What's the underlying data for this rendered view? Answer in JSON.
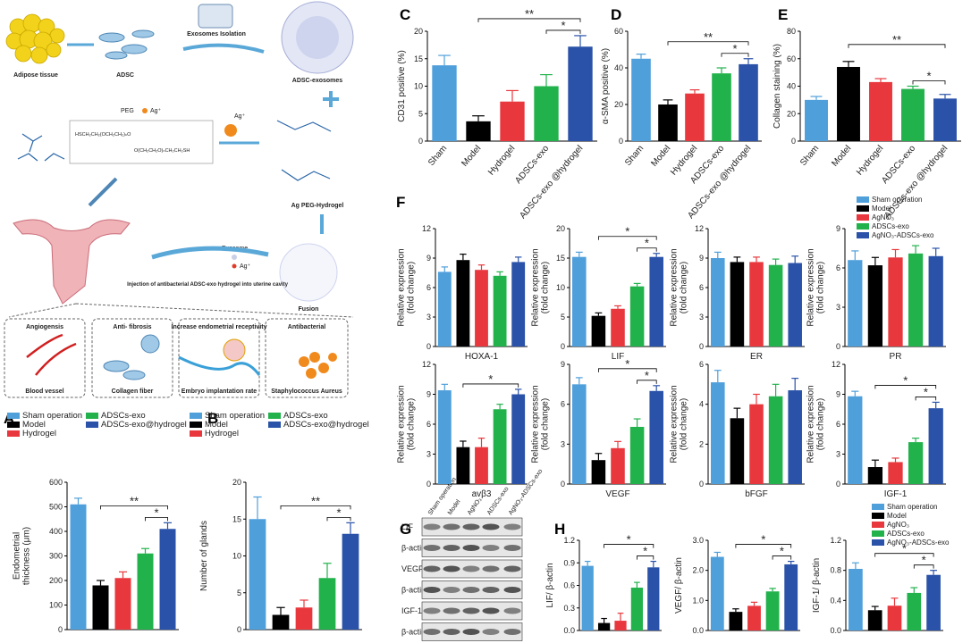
{
  "schematic": {
    "adipose": "Adipose tissue",
    "adsc": "ADSC",
    "isolation": "Exosomes Isolation",
    "exosomes": "ADSC-exosomes",
    "peg": "PEG",
    "ag1": "Ag⁺",
    "ag2": "Ag⁺",
    "chem1": "HSCH₂CH₂(OCH₂CH₂)ₙO",
    "chem2": "O(CH₂CH₂O)ₙCH₂CH₂SH",
    "hydrogel": "Ag PEG-Hydrogel",
    "exosome": "Exosome",
    "ag3": "Ag⁺",
    "fusion": "Fusion",
    "injection": "Injection of antibacterial ADSC-exo hydrogel into uterine cavity",
    "boxes": [
      {
        "title": "Angiogensis",
        "caption": "Blood vessel"
      },
      {
        "title": "Anti- fibrosis",
        "caption": "Collagen fiber"
      },
      {
        "title": "Increase endometrial receptivity",
        "caption": "Embryo implantation rate"
      },
      {
        "title": "Antibacterial",
        "caption": "Staphylococcus Aureus"
      }
    ]
  },
  "blot": {
    "label": "G",
    "lanes": [
      "Sham operation",
      "Model",
      "AgNO₃",
      "ADSCs-exo",
      "AgNO₃-ADSCs-exo"
    ],
    "rows": [
      "LIF",
      "β-actin",
      "VEGF",
      "β-actin",
      "IGF-1",
      "β-actin"
    ]
  },
  "chart_data": [
    {
      "type": "bar",
      "label": "A",
      "ylabel": [
        "Endometrial",
        "thickness (μm)"
      ],
      "categories": [
        "Sham operation",
        "Model",
        "Hydrogel",
        "ADSCs-exo",
        "ADSCs-exo@hydrogel"
      ],
      "colors": [
        "#4f9fdb",
        "#000000",
        "#e8383d",
        "#22b24c",
        "#2a52a8"
      ],
      "values": [
        510,
        180,
        210,
        310,
        410
      ],
      "errors": [
        25,
        20,
        25,
        20,
        25
      ],
      "ylim": [
        0,
        600
      ],
      "yticks": [
        0,
        100,
        200,
        300,
        400,
        500,
        600
      ],
      "legend": true,
      "comparisons": [
        {
          "label": "*",
          "between": [
            3,
            4
          ]
        },
        {
          "label": "**",
          "between": [
            1,
            4
          ]
        }
      ]
    },
    {
      "type": "bar",
      "label": "B",
      "ylabel": [
        "Number of glands"
      ],
      "categories": [
        "Sham operation",
        "Model",
        "Hydrogel",
        "ADSCs-exo",
        "ADSCs-exo@hydrogel"
      ],
      "colors": [
        "#4f9fdb",
        "#000000",
        "#e8383d",
        "#22b24c",
        "#2a52a8"
      ],
      "values": [
        15,
        2,
        3,
        7,
        13
      ],
      "errors": [
        3,
        1,
        1,
        2,
        1.5
      ],
      "ylim": [
        0,
        20
      ],
      "yticks": [
        0,
        5,
        10,
        15,
        20
      ],
      "legend": true,
      "comparisons": [
        {
          "label": "*",
          "between": [
            3,
            4
          ]
        },
        {
          "label": "**",
          "between": [
            1,
            4
          ]
        }
      ]
    },
    {
      "type": "bar",
      "label": "C",
      "ylabel": [
        "CD31 positive (%)"
      ],
      "categories": [
        "Sham",
        "Model",
        "Hydrogel",
        "ADSCs-exo",
        "ADSCs-exo @hydrogel"
      ],
      "colors": [
        "#4f9fdb",
        "#000000",
        "#e8383d",
        "#22b24c",
        "#2a52a8"
      ],
      "values": [
        13.8,
        3.6,
        7.2,
        10,
        17.2
      ],
      "errors": [
        1.8,
        1,
        2,
        2.1,
        2
      ],
      "ylim": [
        0,
        20
      ],
      "yticks": [
        0,
        5,
        10,
        15,
        20
      ],
      "comparisons": [
        {
          "label": "*",
          "between": [
            3,
            4
          ]
        },
        {
          "label": "**",
          "between": [
            1,
            4
          ]
        }
      ]
    },
    {
      "type": "bar",
      "label": "D",
      "ylabel": [
        "α-SMA positive (%)"
      ],
      "categories": [
        "Sham",
        "Model",
        "Hydrogel",
        "ADSCs-exo",
        "ADSCs-exo @hydrogel"
      ],
      "colors": [
        "#4f9fdb",
        "#000000",
        "#e8383d",
        "#22b24c",
        "#2a52a8"
      ],
      "values": [
        45,
        20,
        26,
        37,
        42
      ],
      "errors": [
        2.5,
        2.5,
        2,
        3,
        3
      ],
      "ylim": [
        0,
        60
      ],
      "yticks": [
        0,
        20,
        40,
        60
      ],
      "comparisons": [
        {
          "label": "*",
          "between": [
            3,
            4
          ]
        },
        {
          "label": "**",
          "between": [
            1,
            4
          ]
        }
      ]
    },
    {
      "type": "bar",
      "label": "E",
      "ylabel": [
        "Collagen staining (%)"
      ],
      "categories": [
        "Sham",
        "Model",
        "Hydrogel",
        "ADSCs-exo",
        "ADSCs-exo @hydrogel"
      ],
      "colors": [
        "#4f9fdb",
        "#000000",
        "#e8383d",
        "#22b24c",
        "#2a52a8"
      ],
      "values": [
        30,
        54,
        43,
        38,
        31
      ],
      "errors": [
        2.5,
        4,
        2.5,
        2,
        3
      ],
      "ylim": [
        0,
        80
      ],
      "yticks": [
        0,
        20,
        40,
        60,
        80
      ],
      "comparisons": [
        {
          "label": "*",
          "between": [
            3,
            4
          ]
        },
        {
          "label": "**",
          "between": [
            1,
            4
          ]
        }
      ]
    },
    {
      "type": "bar-grid",
      "label": "F",
      "ylabel": [
        "Relative expression",
        "(fold change)"
      ],
      "categories": [
        "Sham operation",
        "Model",
        "AgNO₃",
        "ADSCs-exo",
        "AgNO₃-ADSCs-exo"
      ],
      "colors": [
        "#4f9fdb",
        "#000000",
        "#e8383d",
        "#22b24c",
        "#2a52a8"
      ],
      "legend": true,
      "panels": [
        {
          "name": "HOXA-1",
          "values": [
            7.6,
            8.8,
            7.8,
            7.2,
            8.6
          ],
          "errors": [
            0.5,
            0.6,
            0.5,
            0.4,
            0.5
          ],
          "ylim": [
            0,
            12
          ],
          "yticks": [
            0,
            3,
            6,
            9,
            12
          ],
          "comparisons": []
        },
        {
          "name": "LIF",
          "values": [
            15.2,
            5.2,
            6.4,
            10.2,
            15.2
          ],
          "errors": [
            0.8,
            0.5,
            0.5,
            0.5,
            0.6
          ],
          "ylim": [
            0,
            20
          ],
          "yticks": [
            0,
            5,
            10,
            15,
            20
          ],
          "comparisons": [
            {
              "label": "*",
              "between": [
                3,
                4
              ]
            },
            {
              "label": "*",
              "between": [
                1,
                4
              ]
            }
          ]
        },
        {
          "name": "ER",
          "values": [
            9,
            8.6,
            8.6,
            8.3,
            8.5
          ],
          "errors": [
            0.6,
            0.5,
            0.5,
            0.6,
            0.7
          ],
          "ylim": [
            0,
            12
          ],
          "yticks": [
            0,
            3,
            6,
            9,
            12
          ],
          "comparisons": []
        },
        {
          "name": "PR",
          "values": [
            6.6,
            6.2,
            6.8,
            7.1,
            6.9
          ],
          "errors": [
            0.7,
            0.6,
            0.6,
            0.6,
            0.6
          ],
          "ylim": [
            0,
            9
          ],
          "yticks": [
            0,
            3,
            6,
            9
          ],
          "comparisons": []
        },
        {
          "name": "avβ3",
          "values": [
            9.4,
            3.7,
            3.7,
            7.5,
            9
          ],
          "errors": [
            0.6,
            0.6,
            0.9,
            0.5,
            0.5
          ],
          "ylim": [
            0,
            12
          ],
          "yticks": [
            0,
            3,
            6,
            9,
            12
          ],
          "comparisons": [
            {
              "label": "*",
              "between": [
                1,
                4
              ]
            }
          ]
        },
        {
          "name": "VEGF",
          "values": [
            7.5,
            1.8,
            2.7,
            4.3,
            7
          ],
          "errors": [
            0.5,
            0.5,
            0.5,
            0.6,
            0.4
          ],
          "ylim": [
            0,
            9
          ],
          "yticks": [
            0,
            3,
            6,
            9
          ],
          "comparisons": [
            {
              "label": "*",
              "between": [
                3,
                4
              ]
            },
            {
              "label": "*",
              "between": [
                1,
                4
              ]
            }
          ]
        },
        {
          "name": "bFGF",
          "values": [
            5.1,
            3.3,
            4,
            4.4,
            4.7
          ],
          "errors": [
            0.6,
            0.5,
            0.5,
            0.6,
            0.6
          ],
          "ylim": [
            0,
            6
          ],
          "yticks": [
            0,
            2,
            4,
            6
          ],
          "comparisons": []
        },
        {
          "name": "IGF-1",
          "values": [
            8.8,
            1.7,
            2.2,
            4.2,
            7.6
          ],
          "errors": [
            0.5,
            0.7,
            0.4,
            0.4,
            0.6
          ],
          "ylim": [
            0,
            12
          ],
          "yticks": [
            0,
            3,
            6,
            9,
            12
          ],
          "comparisons": [
            {
              "label": "*",
              "between": [
                3,
                4
              ]
            },
            {
              "label": "*",
              "between": [
                1,
                4
              ]
            }
          ]
        }
      ]
    },
    {
      "type": "bar-grid",
      "label": "H",
      "categories": [
        "Sham operation",
        "Model",
        "AgNO₃",
        "ADSCs-exo",
        "AgNO₃-ADSCs-exo"
      ],
      "colors": [
        "#4f9fdb",
        "#000000",
        "#e8383d",
        "#22b24c",
        "#2a52a8"
      ],
      "legend": true,
      "panels": [
        {
          "ylabel": [
            "LIF/ β-actin"
          ],
          "values": [
            0.86,
            0.1,
            0.13,
            0.57,
            0.84
          ],
          "errors": [
            0.06,
            0.06,
            0.1,
            0.07,
            0.08
          ],
          "ylim": [
            0,
            1.2
          ],
          "yticks": [
            {
              "value": 0,
              "label": "0.0"
            },
            0.3,
            0.6,
            0.9,
            {
              "value": 1.2,
              "label": "1.2"
            }
          ],
          "comparisons": [
            {
              "label": "*",
              "between": [
                3,
                4
              ]
            },
            {
              "label": "*",
              "between": [
                1,
                4
              ]
            }
          ]
        },
        {
          "ylabel": [
            "VEGF/ β-actin"
          ],
          "values": [
            2.45,
            0.62,
            0.82,
            1.3,
            2.2
          ],
          "errors": [
            0.15,
            0.1,
            0.12,
            0.1,
            0.1
          ],
          "ylim": [
            0,
            3
          ],
          "yticks": [
            {
              "value": 0,
              "label": "0.0"
            },
            {
              "value": 1,
              "label": "1.0"
            },
            {
              "value": 2,
              "label": "2.0"
            },
            {
              "value": 3,
              "label": "3.0"
            }
          ],
          "comparisons": [
            {
              "label": "*",
              "between": [
                3,
                4
              ]
            },
            {
              "label": "*",
              "between": [
                1,
                4
              ]
            }
          ]
        },
        {
          "ylabel": [
            "IGF-1/ β-actin"
          ],
          "values": [
            0.82,
            0.27,
            0.33,
            0.5,
            0.74
          ],
          "errors": [
            0.08,
            0.05,
            0.1,
            0.07,
            0.06
          ],
          "ylim": [
            0,
            1.2
          ],
          "yticks": [
            {
              "value": 0,
              "label": "0.0"
            },
            0.4,
            0.8,
            {
              "value": 1.2,
              "label": "1.2"
            }
          ],
          "comparisons": [
            {
              "label": "*",
              "between": [
                3,
                4
              ]
            },
            {
              "label": "*",
              "between": [
                1,
                4
              ]
            }
          ]
        }
      ]
    }
  ]
}
